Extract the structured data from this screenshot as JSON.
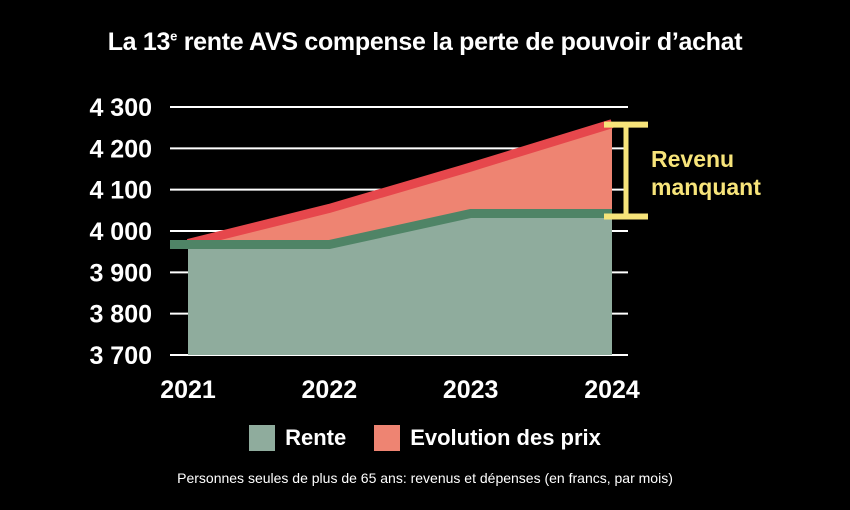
{
  "title_main": "La 13",
  "title_sup": "e",
  "title_rest": " rente AVS compense la perte de pouvoir d’achat",
  "footnote": "Personnes seules de plus de 65 ans: revenus et dépenses (en francs, par mois)",
  "annotation": [
    "Revenu",
    "manquant"
  ],
  "colors": {
    "rente_fill": "#8fac9d",
    "rente_line": "#4f8466",
    "prix_fill": "#ee8472",
    "prix_line": "#e6474c",
    "annotation": "#f7e47a",
    "grid": "#ffffff",
    "background": "#000000"
  },
  "chart_data": {
    "type": "area",
    "x": [
      "2021",
      "2022",
      "2023",
      "2024"
    ],
    "yticks": [
      "4 300",
      "4 200",
      "4 100",
      "4 000",
      "3 900",
      "3 800",
      "3 700"
    ],
    "ytick_values": [
      4300,
      4200,
      4100,
      4000,
      3900,
      3800,
      3700
    ],
    "ylim": [
      3700,
      4300
    ],
    "series": [
      {
        "name": "Rente",
        "values": [
          3960,
          3960,
          4035,
          4035
        ]
      },
      {
        "name": "Evolution des prix",
        "values": [
          3960,
          4045,
          4145,
          4250
        ]
      }
    ],
    "legend_position": "bottom"
  }
}
